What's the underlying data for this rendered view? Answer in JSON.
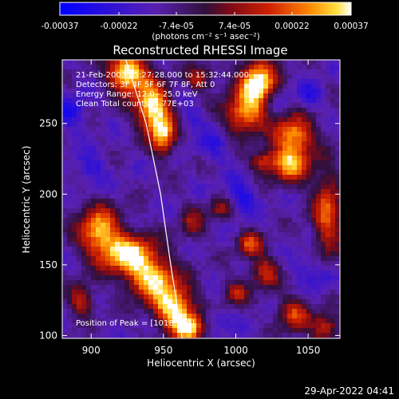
{
  "chart_data": {
    "type": "heatmap",
    "title": "Reconstructed RHESSI Image",
    "xlabel": "Heliocentric X (arcsec)",
    "ylabel": "Heliocentric Y (arcsec)",
    "xlim": [
      880,
      1072
    ],
    "ylim": [
      98,
      295
    ],
    "x_ticks": [
      900,
      950,
      1000,
      1050
    ],
    "y_ticks": [
      100,
      150,
      200,
      250
    ],
    "colorbar": {
      "range": [
        -0.00037,
        0.00037
      ],
      "tick_values": [
        -0.00037,
        -0.00022,
        -7.4e-05,
        7.4e-05,
        0.00022,
        0.00037
      ],
      "tick_labels": [
        "-0.00037",
        "-0.00022",
        "-7.4e-05",
        "7.4e-05",
        "0.00022",
        "0.00037"
      ],
      "unit_label": "(photons cm⁻² s⁻¹ asec⁻²)"
    },
    "annotations": [
      "21-Feb-2003 15:27:28.000 to 15:32:44.000",
      "Detectors: 3F 4F 5F 6F 7F 8F, Att 0",
      "Energy Range: 12.0 - 25.0 keV",
      "Clean     Total counts: 4.77E+03"
    ],
    "peak_label": "Position of Peak = [1018,274]",
    "peak_position": [
      1018,
      274
    ],
    "limb_curve": [
      [
        924,
        295
      ],
      [
        938,
        250
      ],
      [
        948,
        200
      ],
      [
        955,
        150
      ],
      [
        963,
        98
      ]
    ],
    "bright_regions": [
      {
        "x": 925,
        "y": 286,
        "sx": 9,
        "sy": 10,
        "amp": 1.0
      },
      {
        "x": 942,
        "y": 262,
        "sx": 8,
        "sy": 12,
        "amp": 0.95
      },
      {
        "x": 950,
        "y": 242,
        "sx": 6,
        "sy": 10,
        "amp": 0.75
      },
      {
        "x": 905,
        "y": 175,
        "sx": 10,
        "sy": 12,
        "amp": 0.75
      },
      {
        "x": 925,
        "y": 158,
        "sx": 14,
        "sy": 10,
        "amp": 0.85
      },
      {
        "x": 942,
        "y": 140,
        "sx": 12,
        "sy": 10,
        "amp": 0.8
      },
      {
        "x": 957,
        "y": 120,
        "sx": 10,
        "sy": 10,
        "amp": 0.9
      },
      {
        "x": 968,
        "y": 105,
        "sx": 8,
        "sy": 7,
        "amp": 0.8
      },
      {
        "x": 1015,
        "y": 278,
        "sx": 9,
        "sy": 12,
        "amp": 1.0
      },
      {
        "x": 1005,
        "y": 256,
        "sx": 10,
        "sy": 10,
        "amp": 0.65
      },
      {
        "x": 1040,
        "y": 243,
        "sx": 10,
        "sy": 9,
        "amp": 0.7
      },
      {
        "x": 1038,
        "y": 222,
        "sx": 10,
        "sy": 10,
        "amp": 0.75
      },
      {
        "x": 1018,
        "y": 223,
        "sx": 6,
        "sy": 5,
        "amp": 0.5
      },
      {
        "x": 1063,
        "y": 185,
        "sx": 7,
        "sy": 22,
        "amp": 0.6
      },
      {
        "x": 1010,
        "y": 165,
        "sx": 6,
        "sy": 6,
        "amp": 0.55
      },
      {
        "x": 1020,
        "y": 145,
        "sx": 7,
        "sy": 8,
        "amp": 0.5
      },
      {
        "x": 1000,
        "y": 130,
        "sx": 6,
        "sy": 6,
        "amp": 0.45
      },
      {
        "x": 1040,
        "y": 115,
        "sx": 8,
        "sy": 8,
        "amp": 0.55
      },
      {
        "x": 1062,
        "y": 105,
        "sx": 7,
        "sy": 7,
        "amp": 0.5
      },
      {
        "x": 975,
        "y": 282,
        "sx": 7,
        "sy": 6,
        "amp": 0.45
      },
      {
        "x": 990,
        "y": 190,
        "sx": 6,
        "sy": 6,
        "amp": 0.4
      },
      {
        "x": 970,
        "y": 180,
        "sx": 6,
        "sy": 8,
        "amp": 0.35
      },
      {
        "x": 893,
        "y": 125,
        "sx": 6,
        "sy": 8,
        "amp": 0.5
      }
    ],
    "dark_regions": [
      {
        "x": 885,
        "y": 258,
        "sx": 8,
        "sy": 8,
        "amp": 0.8
      },
      {
        "x": 900,
        "y": 218,
        "sx": 8,
        "sy": 8,
        "amp": 0.6
      },
      {
        "x": 985,
        "y": 235,
        "sx": 8,
        "sy": 8,
        "amp": 0.6
      },
      {
        "x": 1003,
        "y": 198,
        "sx": 8,
        "sy": 8,
        "amp": 0.8
      },
      {
        "x": 1028,
        "y": 265,
        "sx": 7,
        "sy": 6,
        "amp": 0.5
      },
      {
        "x": 1052,
        "y": 270,
        "sx": 6,
        "sy": 6,
        "amp": 0.7
      },
      {
        "x": 1050,
        "y": 150,
        "sx": 8,
        "sy": 8,
        "amp": 0.5
      },
      {
        "x": 985,
        "y": 110,
        "sx": 8,
        "sy": 6,
        "amp": 0.55
      },
      {
        "x": 1060,
        "y": 140,
        "sx": 6,
        "sy": 6,
        "amp": 0.55
      },
      {
        "x": 970,
        "y": 255,
        "sx": 6,
        "sy": 6,
        "amp": 0.5
      }
    ]
  },
  "footer": {
    "date": "29-Apr-2022 04:41"
  }
}
